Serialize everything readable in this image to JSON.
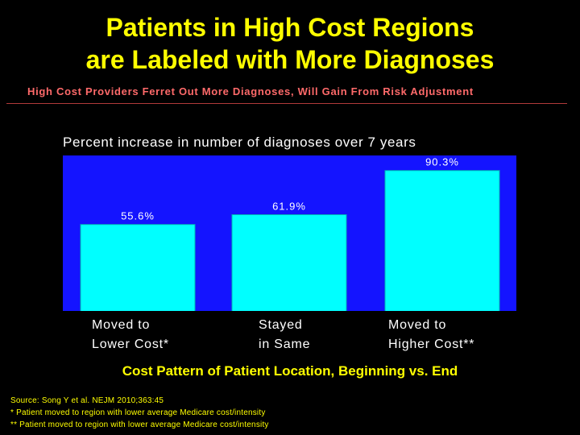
{
  "slide": {
    "title_line1": "Patients in High Cost Regions",
    "title_line2": "are Labeled with More Diagnoses",
    "subtitle": "High Cost Providers Ferret Out More Diagnoses, Will Gain From Risk Adjustment"
  },
  "chart_data": {
    "type": "bar",
    "title": "Percent increase in number of diagnoses over 7 years",
    "categories": [
      "Moved to\nLower Cost*",
      "Stayed\nin Same",
      "Moved to\nHigher Cost**"
    ],
    "values": [
      55.6,
      61.9,
      90.3
    ],
    "data_labels": [
      "55.6%",
      "61.9%",
      "90.3%"
    ],
    "xlabel": "Cost Pattern of Patient Location, Beginning vs. End",
    "ylabel": "",
    "ylim": [
      0,
      100
    ],
    "grid": false,
    "legend": "none",
    "colors": {
      "plot_background": "#1414ff",
      "bar": "#00ffff",
      "bar_border": "#00b5b5",
      "label": "#ffffff"
    }
  },
  "footnotes": [
    "Source: Song Y et al. NEJM 2010;363:45",
    "*  Patient moved to region with lower average Medicare cost/intensity",
    "** Patient moved to region with lower average Medicare cost/intensity"
  ],
  "colors": {
    "background": "#000000",
    "title": "#ffff00",
    "subtitle": "#ff6a6a"
  }
}
